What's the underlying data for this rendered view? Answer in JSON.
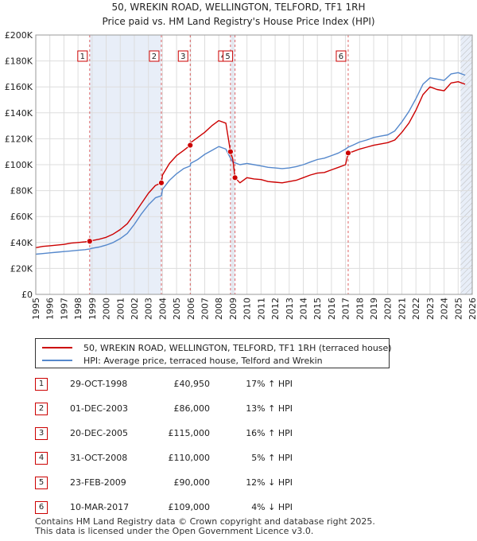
{
  "chart_data": {
    "type": "line",
    "title": "50, WREKIN ROAD, WELLINGTON, TELFORD, TF1 1RH",
    "subtitle": "Price paid vs. HM Land Registry's House Price Index (HPI)",
    "xlim": [
      1995,
      2026
    ],
    "ylim": [
      0,
      200000
    ],
    "x_ticks": [
      1995,
      1996,
      1997,
      1998,
      1999,
      2000,
      2001,
      2002,
      2003,
      2004,
      2005,
      2006,
      2007,
      2008,
      2009,
      2010,
      2011,
      2012,
      2013,
      2014,
      2015,
      2016,
      2017,
      2018,
      2019,
      2020,
      2021,
      2022,
      2023,
      2024,
      2025,
      2026
    ],
    "y_ticks": [
      {
        "value": 0,
        "label": "£0"
      },
      {
        "value": 20000,
        "label": "£20K"
      },
      {
        "value": 40000,
        "label": "£40K"
      },
      {
        "value": 60000,
        "label": "£60K"
      },
      {
        "value": 80000,
        "label": "£80K"
      },
      {
        "value": 100000,
        "label": "£100K"
      },
      {
        "value": 120000,
        "label": "£120K"
      },
      {
        "value": 140000,
        "label": "£140K"
      },
      {
        "value": 160000,
        "label": "£160K"
      },
      {
        "value": 180000,
        "label": "£180K"
      },
      {
        "value": 200000,
        "label": "£200K"
      }
    ],
    "grid": true,
    "shaded_ranges": [
      [
        1998.83,
        2003.92
      ],
      [
        2008.83,
        2009.15
      ],
      [
        2025.17,
        2026
      ]
    ],
    "hatched_range": [
      2025.17,
      2026
    ],
    "series": [
      {
        "name": "50, WREKIN ROAD, WELLINGTON, TELFORD, TF1 1RH (terraced house)",
        "color": "#cc0000",
        "x": [
          1995,
          1995.5,
          1996,
          1996.5,
          1997,
          1997.5,
          1998,
          1998.5,
          1998.83,
          1999,
          1999.5,
          2000,
          2000.5,
          2001,
          2001.5,
          2002,
          2002.5,
          2003,
          2003.5,
          2003.92,
          2004,
          2004.5,
          2005,
          2005.5,
          2005.97,
          2006,
          2006.5,
          2007,
          2007.5,
          2008,
          2008.5,
          2008.83,
          2009.0,
          2009.15,
          2009.5,
          2010,
          2010.5,
          2011,
          2011.5,
          2012,
          2012.5,
          2013,
          2013.5,
          2014,
          2014.5,
          2015,
          2015.5,
          2016,
          2016.5,
          2017.0,
          2017.19,
          2017.5,
          2018,
          2018.5,
          2019,
          2019.5,
          2020,
          2020.5,
          2021,
          2021.5,
          2022,
          2022.5,
          2023,
          2023.5,
          2024,
          2024.5,
          2025,
          2025.5
        ],
        "y": [
          36000,
          37000,
          37500,
          38000,
          38500,
          39500,
          40000,
          40500,
          40950,
          41500,
          42500,
          44000,
          46500,
          50000,
          54500,
          62000,
          70000,
          78000,
          84000,
          86000,
          92000,
          101000,
          107000,
          111000,
          115000,
          117000,
          121000,
          125000,
          130000,
          134000,
          132000,
          110000,
          104000,
          90000,
          86000,
          90000,
          89000,
          88500,
          87000,
          86500,
          86000,
          87000,
          88000,
          90000,
          92000,
          93500,
          94000,
          96000,
          98000,
          100000,
          109000,
          110000,
          112000,
          113500,
          115000,
          116000,
          117000,
          119000,
          125000,
          132000,
          142000,
          154000,
          160000,
          158000,
          157000,
          163000,
          164000,
          162000
        ]
      },
      {
        "name": "HPI: Average price, terraced house, Telford and Wrekin",
        "color": "#5588cc",
        "x": [
          1995,
          1995.5,
          1996,
          1996.5,
          1997,
          1997.5,
          1998,
          1998.5,
          1998.83,
          1999,
          1999.5,
          2000,
          2000.5,
          2001,
          2001.5,
          2002,
          2002.5,
          2003,
          2003.5,
          2003.92,
          2004,
          2004.5,
          2005,
          2005.5,
          2005.97,
          2006,
          2006.5,
          2007,
          2007.5,
          2008,
          2008.5,
          2008.83,
          2009.0,
          2009.15,
          2009.5,
          2010,
          2010.5,
          2011,
          2011.5,
          2012,
          2012.5,
          2013,
          2013.5,
          2014,
          2014.5,
          2015,
          2015.5,
          2016,
          2016.5,
          2017.0,
          2017.19,
          2017.5,
          2018,
          2018.5,
          2019,
          2019.5,
          2020,
          2020.5,
          2021,
          2021.5,
          2022,
          2022.5,
          2023,
          2023.5,
          2024,
          2024.5,
          2025,
          2025.5
        ],
        "y": [
          31000,
          31500,
          32000,
          32500,
          33000,
          33500,
          34000,
          34500,
          35000,
          35500,
          36500,
          38000,
          40000,
          43000,
          47000,
          54000,
          62000,
          69000,
          74500,
          76000,
          81000,
          88000,
          93000,
          97000,
          99000,
          101000,
          104000,
          108000,
          111000,
          114000,
          112000,
          105000,
          102000,
          101500,
          100000,
          101000,
          100000,
          99000,
          98000,
          97500,
          97000,
          97500,
          98500,
          100000,
          102000,
          104000,
          105000,
          107000,
          109000,
          112000,
          113500,
          115000,
          117500,
          119000,
          121000,
          122000,
          123000,
          126000,
          133000,
          141000,
          151000,
          162000,
          167000,
          166000,
          165000,
          170000,
          171000,
          169000
        ]
      }
    ],
    "sales": [
      {
        "n": "1",
        "x": 1998.83,
        "price": 40950
      },
      {
        "n": "2",
        "x": 2003.92,
        "price": 86000
      },
      {
        "n": "3",
        "x": 2005.97,
        "price": 115000
      },
      {
        "n": "4",
        "x": 2008.83,
        "price": 110000
      },
      {
        "n": "5",
        "x": 2009.15,
        "price": 90000
      },
      {
        "n": "6",
        "x": 2017.19,
        "price": 109000
      }
    ]
  },
  "legend": {
    "property_label": "50, WREKIN ROAD, WELLINGTON, TELFORD, TF1 1RH (terraced house)",
    "hpi_label": "HPI: Average price, terraced house, Telford and Wrekin"
  },
  "sales_table": [
    {
      "n": "1",
      "date": "29-OCT-1998",
      "price": "£40,950",
      "hpi": "17% ↑ HPI"
    },
    {
      "n": "2",
      "date": "01-DEC-2003",
      "price": "£86,000",
      "hpi": "13% ↑ HPI"
    },
    {
      "n": "3",
      "date": "20-DEC-2005",
      "price": "£115,000",
      "hpi": "16% ↑ HPI"
    },
    {
      "n": "4",
      "date": "31-OCT-2008",
      "price": "£110,000",
      "hpi": "5% ↑ HPI"
    },
    {
      "n": "5",
      "date": "23-FEB-2009",
      "price": "£90,000",
      "hpi": "12% ↓ HPI"
    },
    {
      "n": "6",
      "date": "10-MAR-2017",
      "price": "£109,000",
      "hpi": "4% ↓ HPI"
    }
  ],
  "footer": {
    "line1": "Contains HM Land Registry data © Crown copyright and database right 2025.",
    "line2": "This data is licensed under the Open Government Licence v3.0."
  },
  "colors": {
    "property": "#cc0000",
    "hpi": "#5588cc",
    "shade": "#e8eef8",
    "grid": "#dddddd"
  }
}
